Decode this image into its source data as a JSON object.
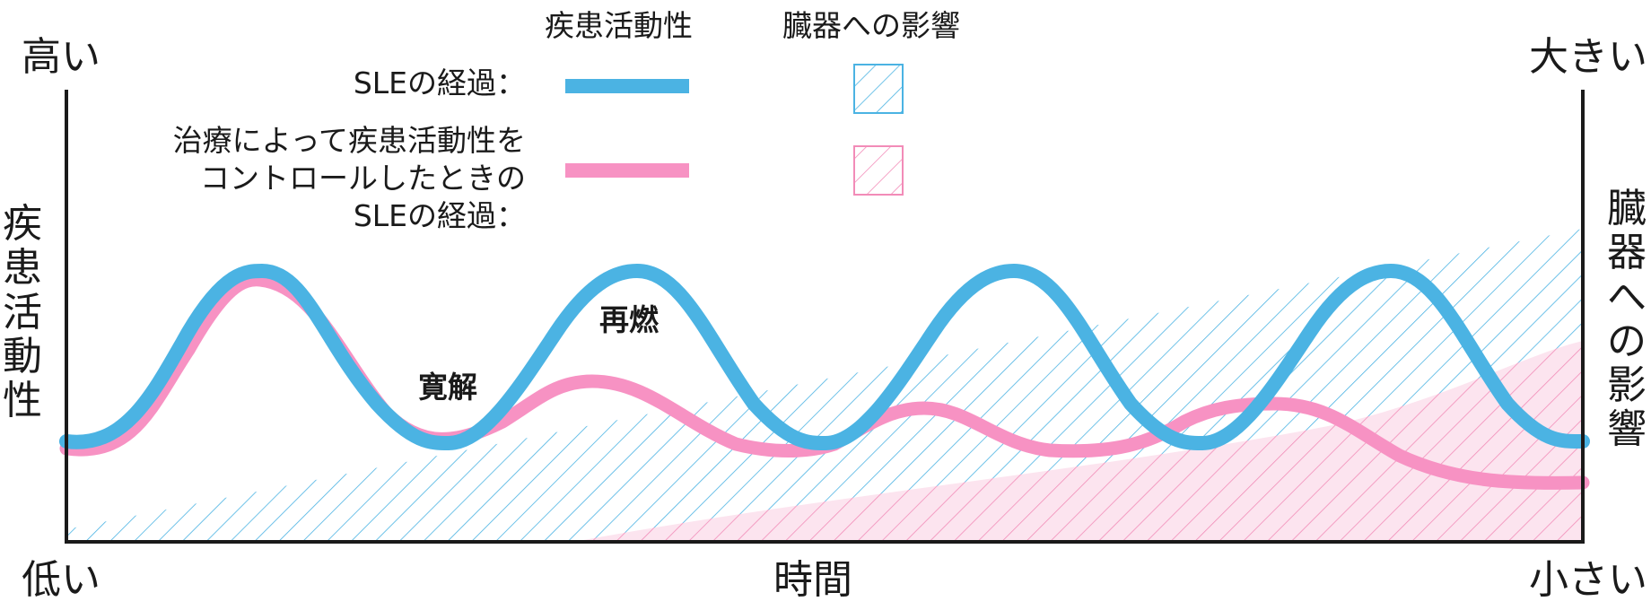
{
  "labels": {
    "left_top": "高い",
    "left_bottom": "低い",
    "right_top": "大きい",
    "right_bottom": "小さい",
    "left_axis": [
      "疾",
      "患",
      "活",
      "動",
      "性"
    ],
    "right_axis": [
      "臓",
      "器",
      "へ",
      "の",
      "影",
      "響"
    ],
    "x_axis": "時間",
    "remission": "寛解",
    "flare": "再燃"
  },
  "legend": {
    "col1_header": "疾患活動性",
    "col2_header": "臓器への影響",
    "row1_label": "SLEの経過：",
    "row2_label_lines": [
      "治療によって疾患活動性を",
      "コントロールしたときの",
      "SLEの経過："
    ]
  },
  "colors": {
    "blue": "#4BB3E3",
    "pink": "#F792C3",
    "pink_fill": "#FCE4EF",
    "axis": "#1a1a1a"
  }
}
